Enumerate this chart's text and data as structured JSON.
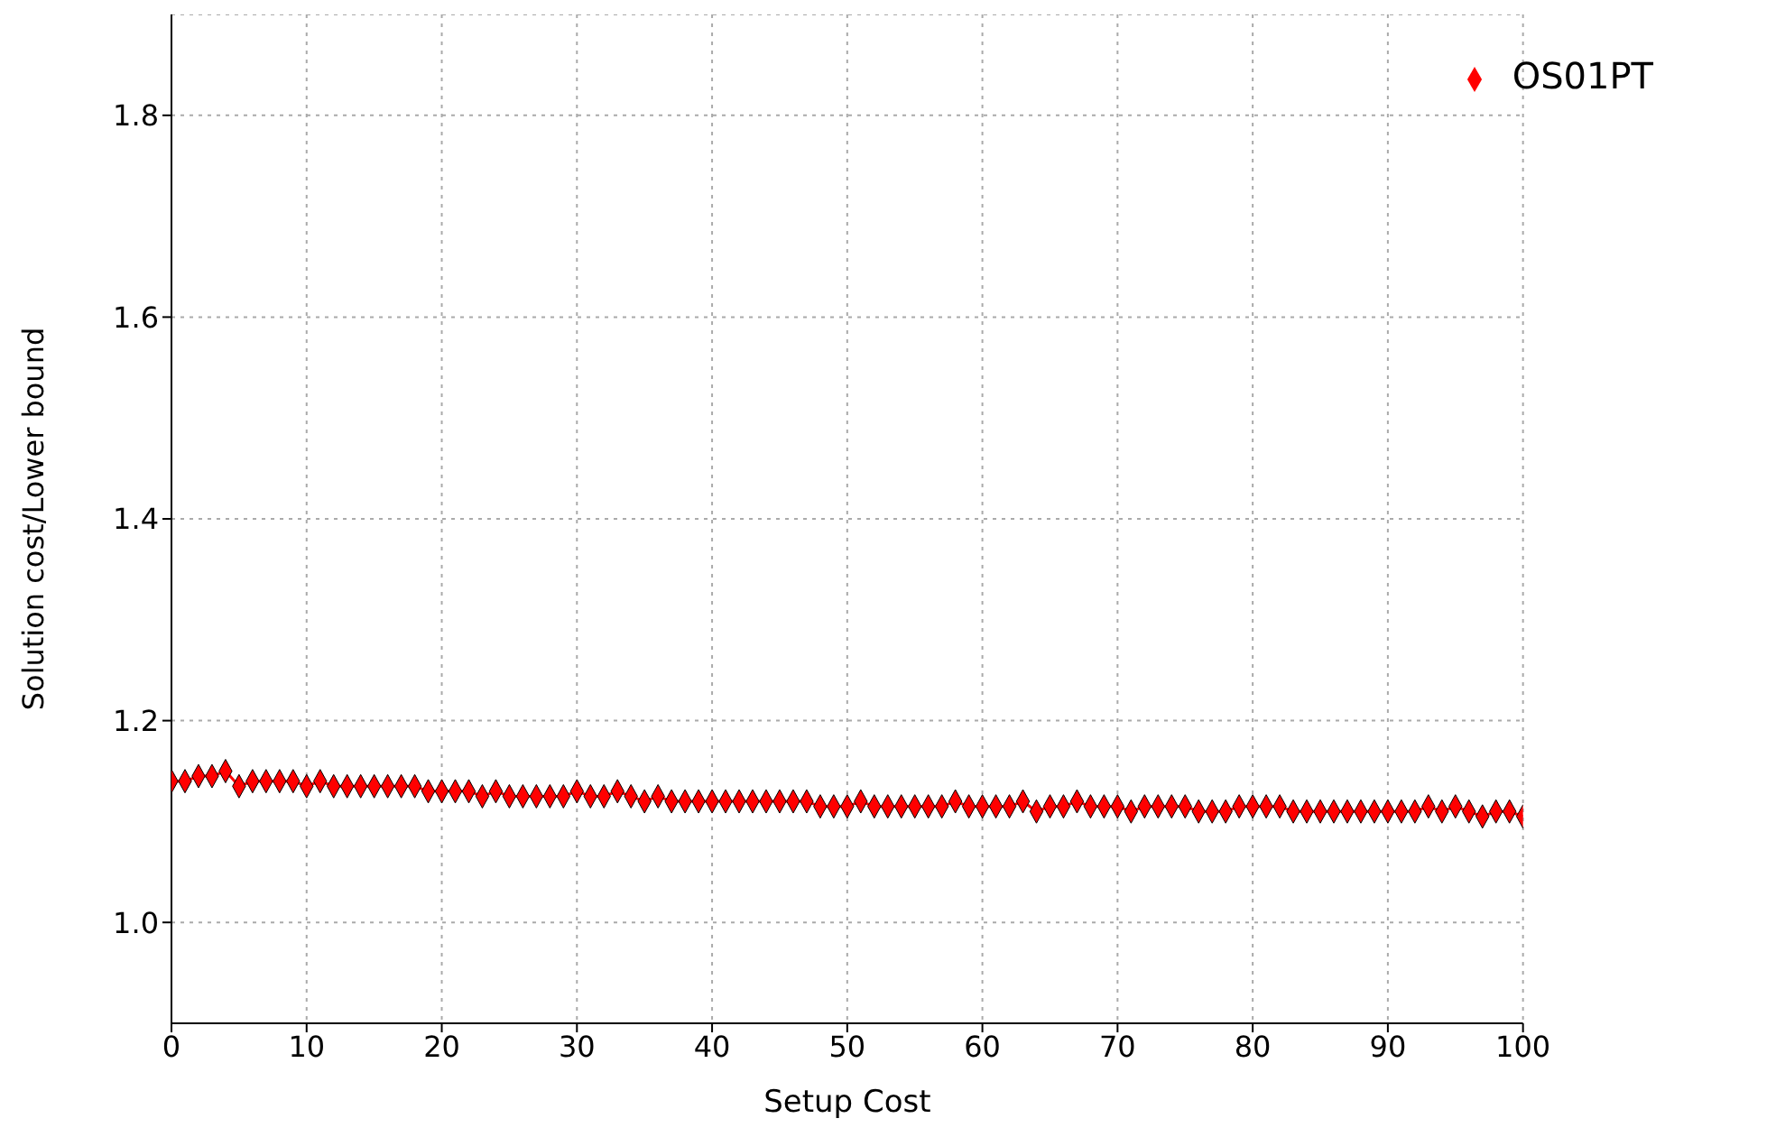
{
  "chart_data": {
    "type": "line",
    "xlabel": "Setup Cost",
    "ylabel": "Solution cost/Lower bound",
    "x": [
      0,
      1,
      2,
      3,
      4,
      5,
      6,
      7,
      8,
      9,
      10,
      11,
      12,
      13,
      14,
      15,
      16,
      17,
      18,
      19,
      20,
      21,
      22,
      23,
      24,
      25,
      26,
      27,
      28,
      29,
      30,
      31,
      32,
      33,
      34,
      35,
      36,
      37,
      38,
      39,
      40,
      41,
      42,
      43,
      44,
      45,
      46,
      47,
      48,
      49,
      50,
      51,
      52,
      53,
      54,
      55,
      56,
      57,
      58,
      59,
      60,
      61,
      62,
      63,
      64,
      65,
      66,
      67,
      68,
      69,
      70,
      71,
      72,
      73,
      74,
      75,
      76,
      77,
      78,
      79,
      80,
      81,
      82,
      83,
      84,
      85,
      86,
      87,
      88,
      89,
      90,
      91,
      92,
      93,
      94,
      95,
      96,
      97,
      98,
      99,
      100
    ],
    "series": [
      {
        "name": "OS01PT",
        "color": "#ff0000",
        "values": [
          1.14,
          1.14,
          1.145,
          1.145,
          1.15,
          1.135,
          1.14,
          1.14,
          1.14,
          1.14,
          1.135,
          1.14,
          1.135,
          1.135,
          1.135,
          1.135,
          1.135,
          1.135,
          1.135,
          1.13,
          1.13,
          1.13,
          1.13,
          1.125,
          1.13,
          1.125,
          1.125,
          1.125,
          1.125,
          1.125,
          1.13,
          1.125,
          1.125,
          1.13,
          1.125,
          1.12,
          1.125,
          1.12,
          1.12,
          1.12,
          1.12,
          1.12,
          1.12,
          1.12,
          1.12,
          1.12,
          1.12,
          1.12,
          1.115,
          1.115,
          1.115,
          1.12,
          1.115,
          1.115,
          1.115,
          1.115,
          1.115,
          1.115,
          1.12,
          1.115,
          1.115,
          1.115,
          1.115,
          1.12,
          1.11,
          1.115,
          1.115,
          1.12,
          1.115,
          1.115,
          1.115,
          1.11,
          1.115,
          1.115,
          1.115,
          1.115,
          1.11,
          1.11,
          1.11,
          1.115,
          1.115,
          1.115,
          1.115,
          1.11,
          1.11,
          1.11,
          1.11,
          1.11,
          1.11,
          1.11,
          1.11,
          1.11,
          1.11,
          1.115,
          1.11,
          1.115,
          1.11,
          1.105,
          1.11,
          1.11,
          1.105
        ]
      }
    ],
    "xlim": [
      0,
      100
    ],
    "xticks": [
      0,
      10,
      20,
      30,
      40,
      50,
      60,
      70,
      80,
      90,
      100
    ],
    "ylim": [
      0.9,
      1.9
    ],
    "yticks": [
      {
        "value": 1,
        "label": "1.0"
      },
      {
        "value": 1.2,
        "label": "1.2"
      },
      {
        "value": 1.4,
        "label": "1.4"
      },
      {
        "value": 1.6,
        "label": "1.6"
      },
      {
        "value": 1.8,
        "label": "1.8"
      }
    ],
    "grid": true,
    "legend": "top right",
    "marker": "diamond",
    "line_style": "solid"
  }
}
